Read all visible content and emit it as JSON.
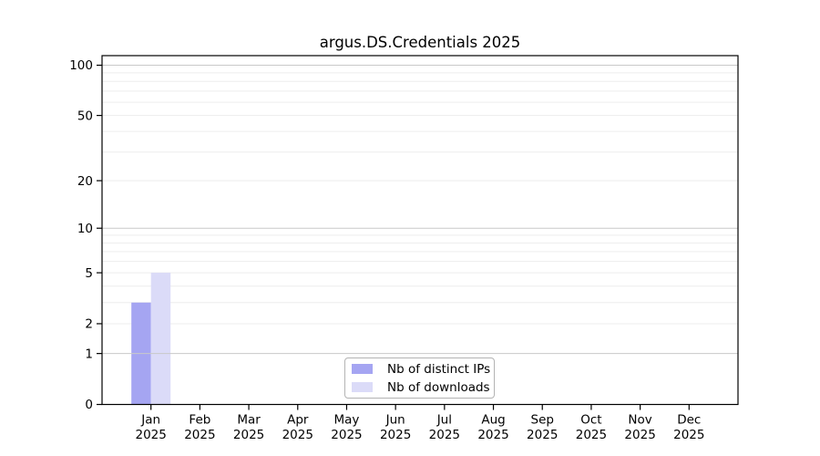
{
  "title": "argus.DS.Credentials 2025",
  "chart_data": {
    "type": "bar",
    "title": "argus.DS.Credentials 2025",
    "categories": [
      "Jan",
      "Feb",
      "Mar",
      "Apr",
      "May",
      "Jun",
      "Jul",
      "Aug",
      "Sep",
      "Oct",
      "Nov",
      "Dec"
    ],
    "x_tick_year": "2025",
    "series": [
      {
        "name": "Nb of distinct IPs",
        "color": "#a5a5f2",
        "values": [
          3,
          0,
          0,
          0,
          0,
          0,
          0,
          0,
          0,
          0,
          0,
          0
        ]
      },
      {
        "name": "Nb of downloads",
        "color": "#dbdbf8",
        "values": [
          5,
          0,
          0,
          0,
          0,
          0,
          0,
          0,
          0,
          0,
          0,
          0
        ]
      }
    ],
    "y_axis": {
      "scale": "log1p",
      "labeled_ticks": [
        0,
        1,
        2,
        5,
        10,
        20,
        50,
        100
      ],
      "major_grid_values": [
        1,
        10,
        100
      ],
      "minor_grid_values": [
        2,
        3,
        4,
        5,
        6,
        7,
        8,
        9,
        20,
        30,
        40,
        50,
        60,
        70,
        80,
        90
      ],
      "top_value": 114
    },
    "grid": true,
    "legend_position": "lower-center",
    "colors": {
      "spine": "#000000",
      "major_grid": "#c9c9c9",
      "minor_grid": "#ededed",
      "tick_label": "#000000"
    }
  }
}
